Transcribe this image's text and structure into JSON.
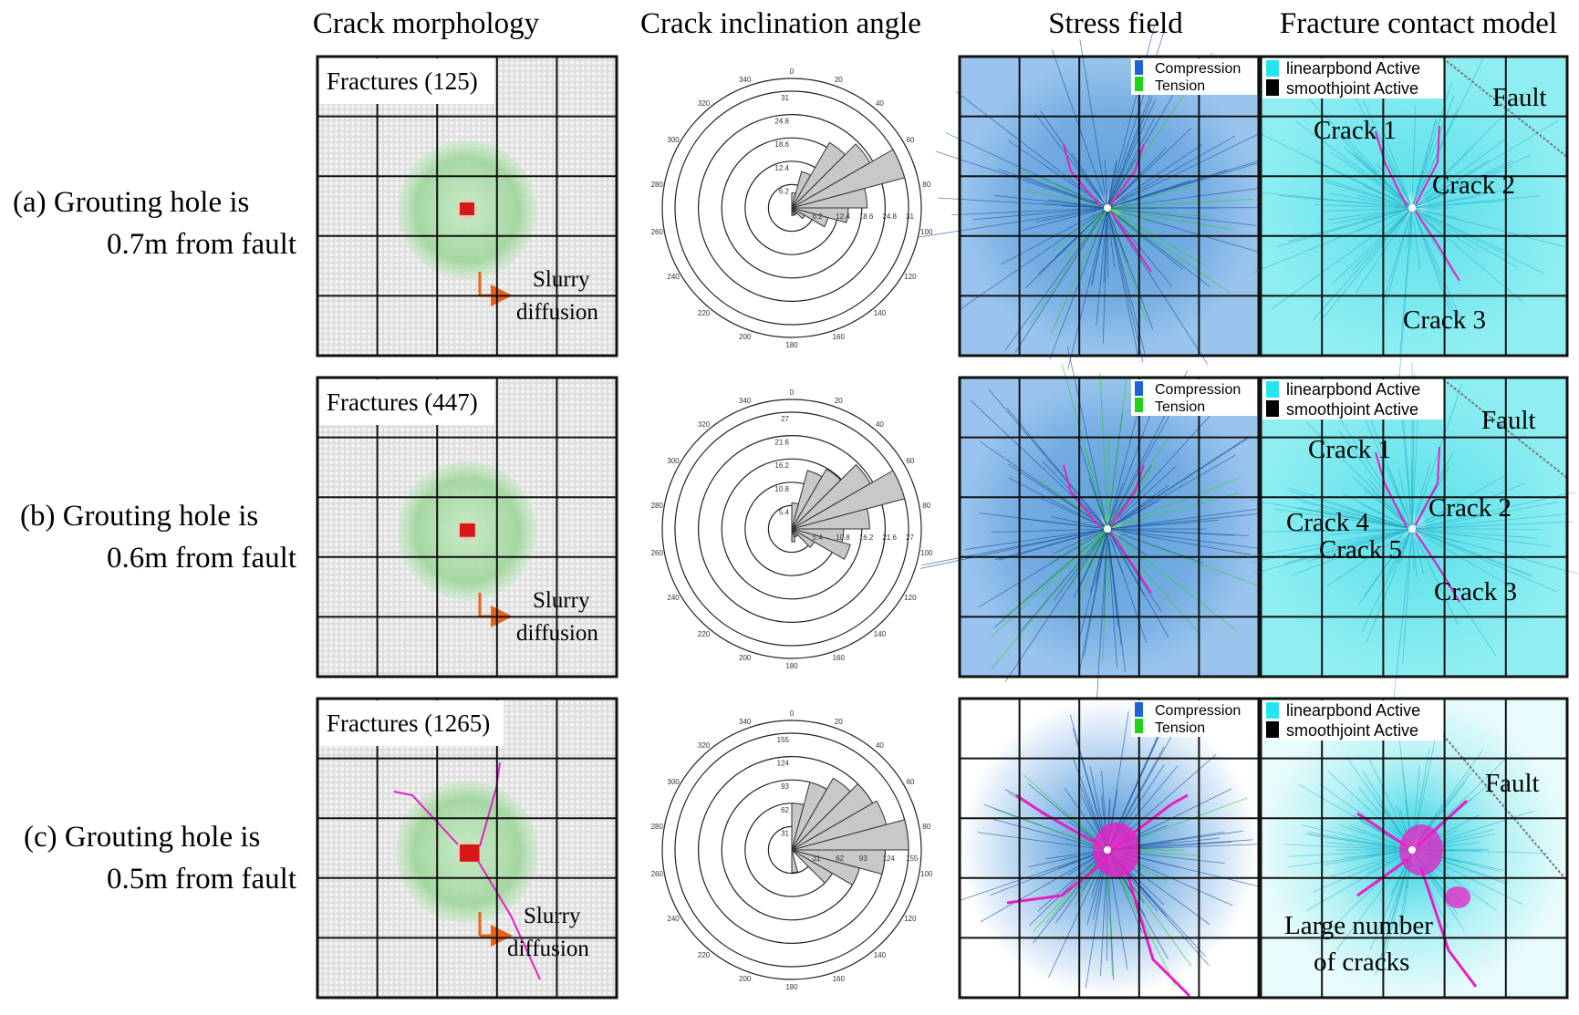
{
  "column_headers": [
    "Crack morphology",
    "Crack inclination angle",
    "Stress field",
    "Fracture contact model"
  ],
  "rows": [
    {
      "label_line1": "(a)  Grouting hole is",
      "label_line2": "0.7m from fault",
      "fractures_label": "Fractures  (125)",
      "slurry_label_1": "Slurry",
      "slurry_label_2": "diffusion",
      "rose": {
        "ring_labels": [
          "6.2",
          "12.4",
          "18.6",
          "24.8",
          "31"
        ],
        "max": 31,
        "values": [
          4,
          10,
          20,
          24,
          31,
          20,
          15,
          10,
          4,
          2,
          2,
          2
        ]
      },
      "contact_labels": [
        "Fault",
        "Crack 1",
        "Crack 2",
        "Crack 3"
      ]
    },
    {
      "label_line1": "(b) Grouting hole is",
      "label_line2": "0.6m from fault",
      "fractures_label": "Fractures  (447)",
      "slurry_label_1": "Slurry",
      "slurry_label_2": "diffusion",
      "rose": {
        "ring_labels": [
          "5.4",
          "10.8",
          "16.2",
          "21.6",
          "27"
        ],
        "max": 27,
        "values": [
          6,
          14,
          16,
          21,
          27,
          18,
          12,
          14,
          6,
          2,
          2,
          3
        ]
      },
      "contact_labels": [
        "Fault",
        "Crack 1",
        "Crack 2",
        "Crack 4",
        "Crack 5",
        "Crack 3"
      ]
    },
    {
      "label_line1": "(c) Grouting hole is",
      "label_line2": "0.5m from fault",
      "fractures_label": "Fractures  (1265)",
      "slurry_label_1": "Slurry",
      "slurry_label_2": "diffusion",
      "rose": {
        "ring_labels": [
          "31",
          "62",
          "93",
          "124",
          "155"
        ],
        "max": 155,
        "values": [
          62,
          93,
          110,
          124,
          130,
          155,
          124,
          93,
          62,
          2,
          2,
          30
        ]
      },
      "contact_labels": [
        "Fault",
        "Large number",
        "of cracks"
      ]
    }
  ],
  "angle_labels": [
    "0",
    "20",
    "40",
    "60",
    "80",
    "100",
    "120",
    "140",
    "160",
    "180",
    "200",
    "220",
    "240",
    "260",
    "280",
    "300",
    "320",
    "340"
  ],
  "stress_legend": [
    "Compression",
    "Tension"
  ],
  "contact_legend": [
    "linearpbond Active",
    "smoothjoint Active"
  ],
  "colors": {
    "compression": "#1f63d8",
    "tension": "#22d11e",
    "linearpbond": "#25e6f0",
    "smoothjoint": "#000000",
    "slurry": "#7ccf7a",
    "crack": "#e81ec4",
    "arrow": "#e8631a",
    "rose_fill": "#c8c8c8"
  }
}
